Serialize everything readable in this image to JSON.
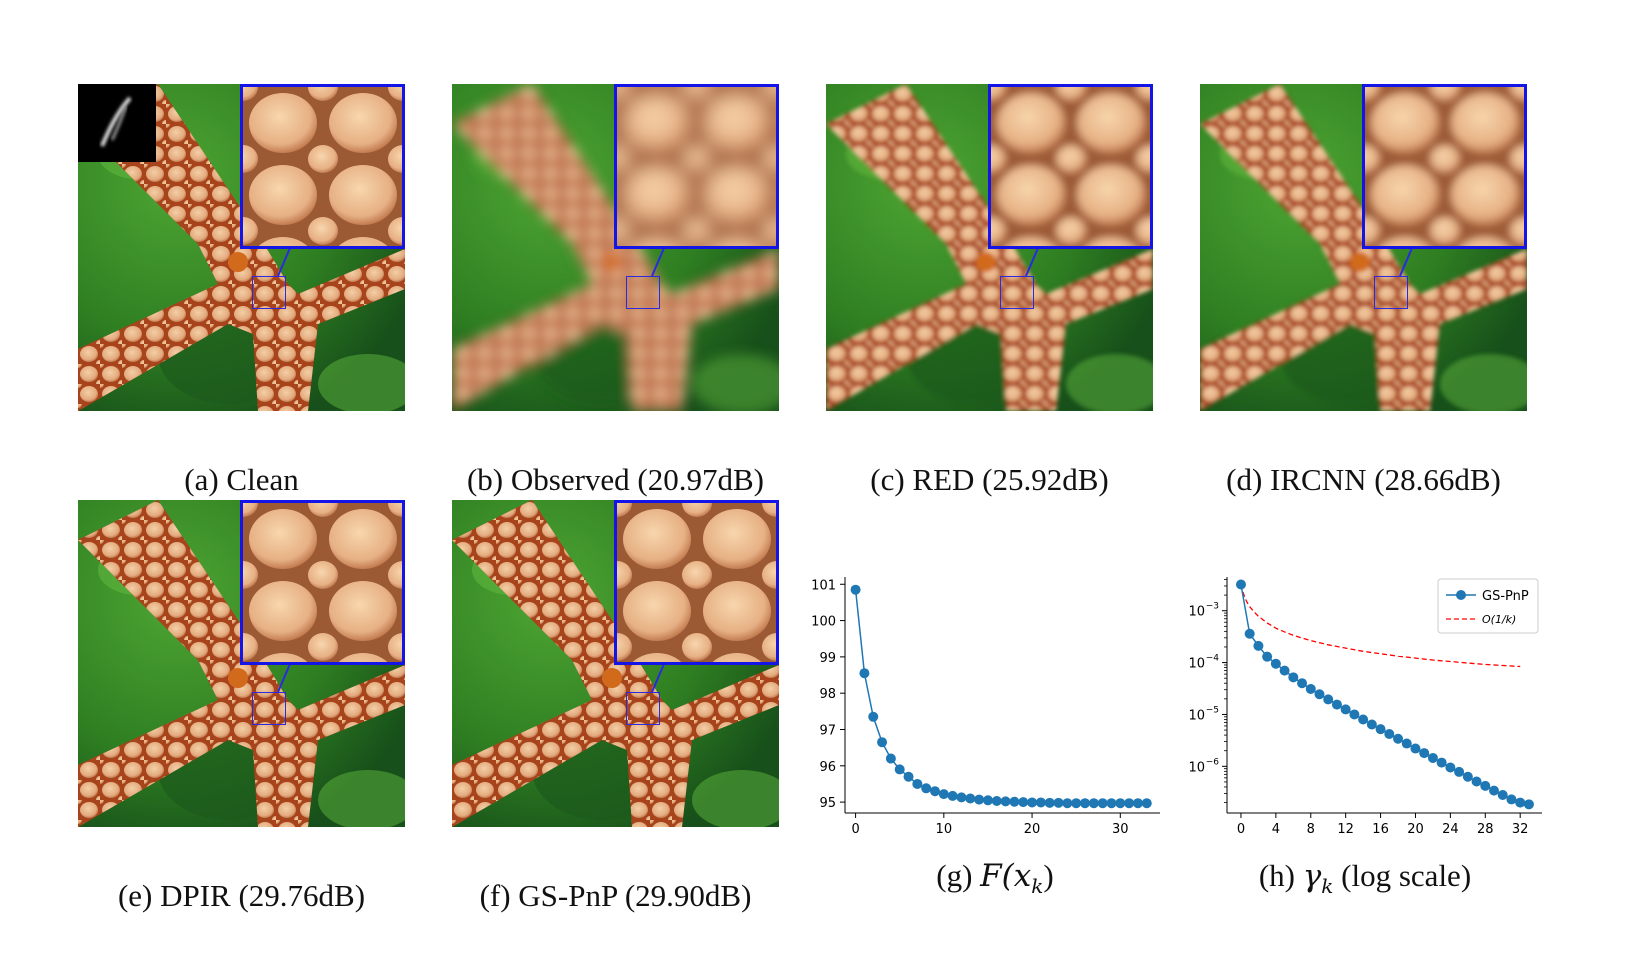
{
  "panels": [
    {
      "id": "a",
      "caption": "(a) Clean",
      "kind": "clean"
    },
    {
      "id": "b",
      "caption": "(b) Observed (20.97dB)",
      "kind": "blurry"
    },
    {
      "id": "c",
      "caption": "(c) RED (25.92dB)",
      "kind": "soft"
    },
    {
      "id": "d",
      "caption": "(d) IRCNN (28.66dB)",
      "kind": "soft"
    },
    {
      "id": "e",
      "caption": "(e) DPIR (29.76dB)",
      "kind": "sharp"
    },
    {
      "id": "f",
      "caption": "(f) GS-PnP (29.90dB)",
      "kind": "sharp"
    }
  ],
  "captions": {
    "g_prefix": "(g) ",
    "g_math": "F(x",
    "g_sub": "k",
    "g_suffix": ")",
    "h_prefix": "(h) ",
    "h_math": "γ",
    "h_sub": "k",
    "h_suffix": " (log scale)"
  },
  "colors": {
    "inset_border": "#1414e6",
    "series": "#1f77b4",
    "reference": "#ff0000"
  },
  "chart_data": [
    {
      "type": "line",
      "id": "g",
      "x": [
        0,
        1,
        2,
        3,
        4,
        5,
        6,
        7,
        8,
        9,
        10,
        11,
        12,
        13,
        14,
        15,
        16,
        17,
        18,
        19,
        20,
        21,
        22,
        23,
        24,
        25,
        26,
        27,
        28,
        29,
        30,
        31,
        32,
        33
      ],
      "y": [
        100.85,
        98.55,
        97.35,
        96.65,
        96.2,
        95.9,
        95.7,
        95.5,
        95.38,
        95.3,
        95.22,
        95.17,
        95.13,
        95.1,
        95.07,
        95.05,
        95.03,
        95.02,
        95.01,
        95.0,
        94.99,
        94.99,
        94.98,
        94.98,
        94.97,
        94.97,
        94.97,
        94.97,
        94.97,
        94.97,
        94.97,
        94.97,
        94.97,
        94.97
      ],
      "xticks": [
        0,
        10,
        20,
        30
      ],
      "yticks": [
        95,
        96,
        97,
        98,
        99,
        100,
        101
      ],
      "xlim": [
        -1.2,
        34.5
      ],
      "ylim": [
        94.7,
        101.2
      ],
      "grid": false
    },
    {
      "type": "line",
      "id": "h",
      "scale": "log",
      "series": [
        {
          "name": "GS-PnP",
          "style": "line-marker",
          "x": [
            0,
            1,
            2,
            3,
            4,
            5,
            6,
            7,
            8,
            9,
            10,
            11,
            12,
            13,
            14,
            15,
            16,
            17,
            18,
            19,
            20,
            21,
            22,
            23,
            24,
            25,
            26,
            27,
            28,
            29,
            30,
            31,
            32,
            33
          ],
          "y": [
            0.0032,
            0.00036,
            0.00021,
            0.00013,
            9.5e-05,
            7e-05,
            5.2e-05,
            4e-05,
            3.1e-05,
            2.45e-05,
            1.95e-05,
            1.55e-05,
            1.25e-05,
            1e-05,
            8e-06,
            6.4e-06,
            5.2e-06,
            4.2e-06,
            3.4e-06,
            2.75e-06,
            2.2e-06,
            1.8e-06,
            1.45e-06,
            1.18e-06,
            9.5e-07,
            7.8e-07,
            6.3e-07,
            5.1e-07,
            4.2e-07,
            3.4e-07,
            2.8e-07,
            2.3e-07,
            2e-07,
            1.85e-07
          ]
        },
        {
          "name": "O(1/k)",
          "style": "dashed",
          "x": [
            0.05,
            0.1,
            0.2,
            0.3,
            0.5,
            0.75,
            1,
            1.5,
            2,
            3,
            4,
            5,
            6,
            8,
            10,
            12,
            14,
            16,
            18,
            20,
            22,
            24,
            26,
            28,
            30,
            32
          ],
          "y": [
            0.00325,
            0.0029,
            0.0024,
            0.0021,
            0.0017,
            0.0014,
            0.0012,
            0.00095,
            0.00078,
            0.00058,
            0.00046,
            0.00039,
            0.000335,
            0.000265,
            0.00022,
            0.00019,
            0.000165,
            0.000148,
            0.000133,
            0.000122,
            0.000112,
            0.000105,
            9.8e-05,
            9.2e-05,
            8.8e-05,
            8.4e-05
          ]
        }
      ],
      "legend": {
        "position": "top-right",
        "entries": [
          "GS-PnP",
          "O(1/k)"
        ]
      },
      "xticks": [
        0,
        4,
        8,
        12,
        16,
        20,
        24,
        28,
        32
      ],
      "yticks": [
        1e-06,
        1e-05,
        0.0001,
        0.001
      ],
      "ytick_labels": [
        "10",
        "10",
        "10",
        "10"
      ],
      "ytick_exps": [
        "−6",
        "−5",
        "−4",
        "−3"
      ],
      "xlim": [
        -1.6,
        34.5
      ],
      "ylim_log10": [
        -6.9,
        -2.35
      ],
      "grid": false
    }
  ]
}
